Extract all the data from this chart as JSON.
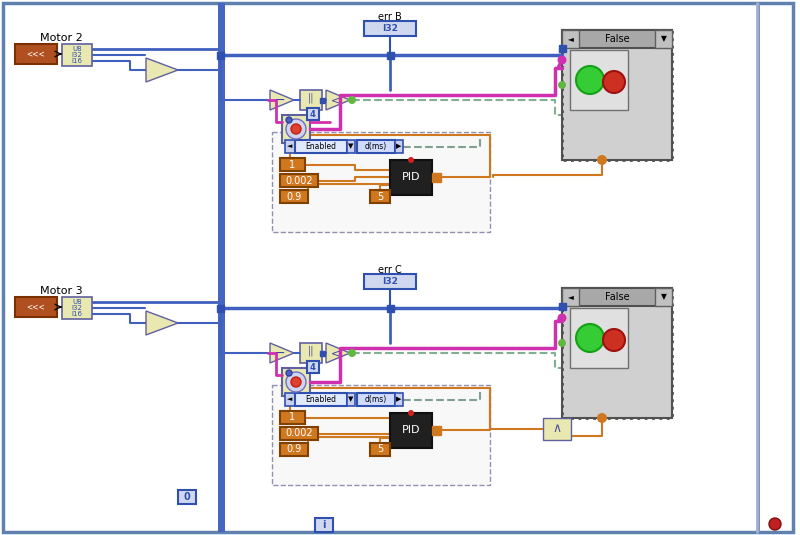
{
  "bg": "#ffffff",
  "frame_color": "#6080b0",
  "blue": "#3050b0",
  "blue_wire": "#4060c0",
  "blue_thick": "#3050a0",
  "orange": "#d07820",
  "magenta": "#d030b0",
  "pink_wire": "#e040c0",
  "green_dot": "#60b840",
  "teal_wire": "#80b090",
  "gray_case": "#c0c0c0",
  "dark_case": "#404040",
  "brown_ctrl": "#b05020",
  "yellow_node": "#e8e8b0",
  "node_bg": "#d0d8f0",
  "motor2": "Motor 2",
  "motor3": "Motor 3",
  "errB": "err B",
  "errC": "err C",
  "false_txt": "False",
  "enabled_txt": "Enabled",
  "dms_txt": "d(ms)",
  "pid_txt": "PID",
  "i32_txt": "I32",
  "v1": "1",
  "v2": "0.002",
  "v3": "0.9",
  "v4": "5",
  "v0": "0",
  "vi": "i",
  "m2y": 55,
  "m3y": 308
}
